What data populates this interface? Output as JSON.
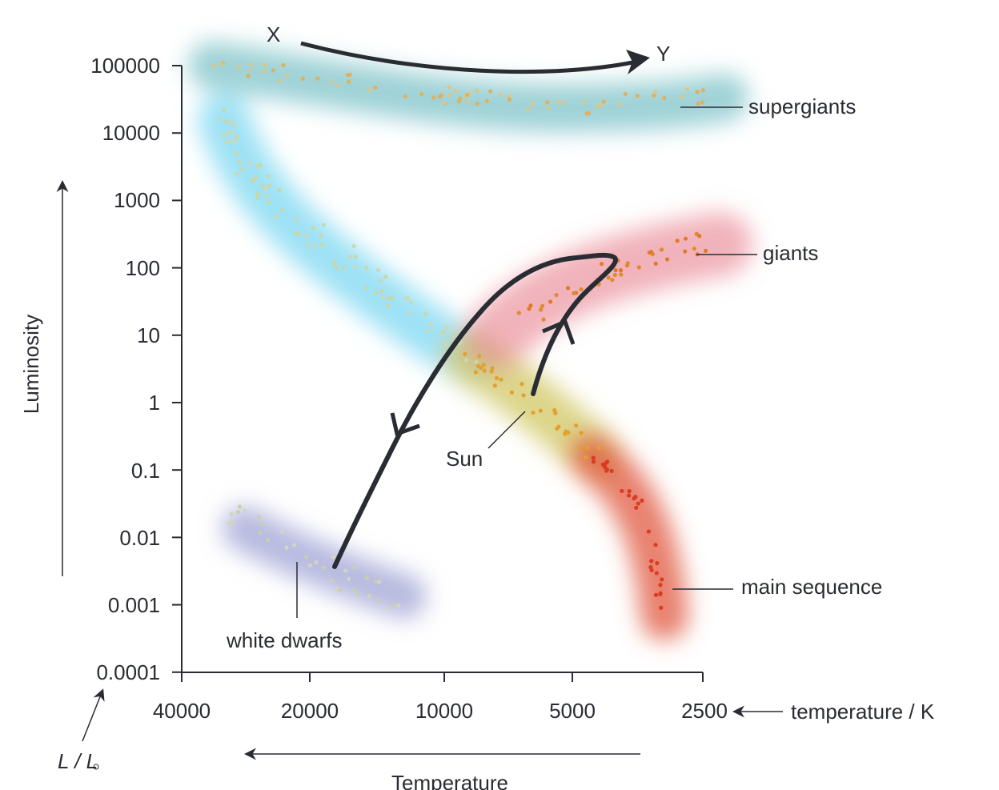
{
  "title_markers": {
    "start": "X",
    "end": "Y"
  },
  "y_axis": {
    "label": "Luminosity",
    "unit_label": "L / L",
    "ticks": [
      "100000",
      "10000",
      "1000",
      "100",
      "10",
      "1",
      "0.1",
      "0.01",
      "0.001",
      "0.0001"
    ]
  },
  "x_axis": {
    "label": "Temperature",
    "unit_label": "temperature / K",
    "ticks": [
      "40000",
      "20000",
      "10000",
      "5000",
      "2500"
    ]
  },
  "regions": {
    "supergiants": "supergiants",
    "giants": "giants",
    "main_sequence": "main sequence",
    "white_dwarfs": "white dwarfs",
    "sun": "Sun"
  },
  "colors": {
    "supergiants": "#7ec3c8",
    "main_sequence_hot": "#86dbf2",
    "main_sequence_mid": "#d3ca6c",
    "main_sequence_cool": "#e0573d",
    "giants": "#e98b97",
    "white_dwarfs": "#a6a9d8",
    "ink": "#2a2c33"
  }
}
